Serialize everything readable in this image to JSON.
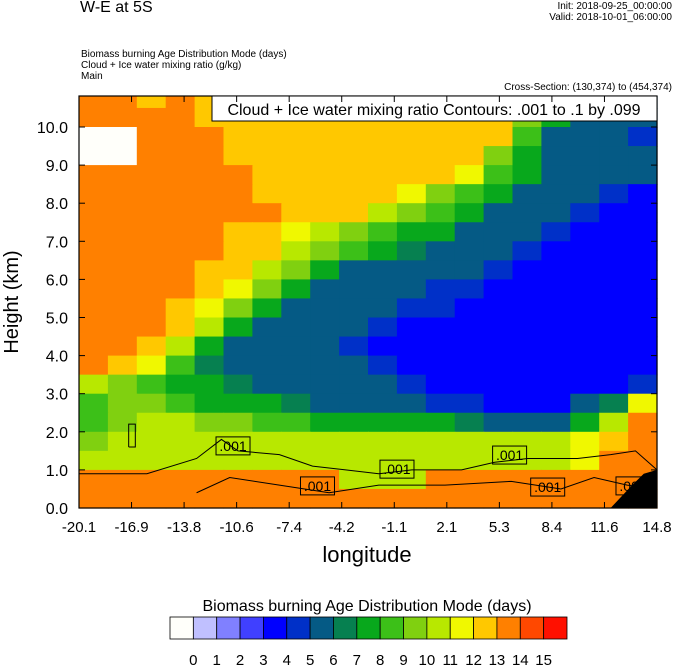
{
  "header": {
    "title": "W-E at 5S",
    "init": "Init: 2018-09-25_00:00:00",
    "valid": "Valid: 2018-10-01_06:00:00",
    "field_lines": [
      "Biomass burning Age Distribution Mode   (days)",
      "Cloud + Ice water mixing ratio   (g/kg)",
      "Main"
    ],
    "cross_section": "Cross-Section: (130,374) to (454,374)"
  },
  "chart_data": {
    "type": "heatmap",
    "title": "W-E at 5S",
    "overlay_title": "Cloud + Ice water mixing ratio Contours: .001 to .1 by .099",
    "xlabel": "longitude",
    "ylabel": "Height (km)",
    "xlim": [
      -20.1,
      14.8
    ],
    "ylim": [
      0,
      10.8
    ],
    "xticks": [
      "-20.1",
      "-16.9",
      "-13.8",
      "-10.6",
      "-7.4",
      "-4.2",
      "-1.1",
      "2.1",
      "5.3",
      "8.4",
      "11.6",
      "14.8"
    ],
    "yticks": [
      "0.0",
      "1.0",
      "2.0",
      "3.0",
      "4.0",
      "5.0",
      "6.0",
      "7.0",
      "8.0",
      "9.0",
      "10.0"
    ],
    "grid_note": "rows from top (10.5-11 km) to bottom (0-0.5 km) in 0.5 km steps; 20 columns west to east; values are color bin index",
    "grid": [
      [
        14,
        14,
        13,
        14,
        13,
        13,
        13,
        13,
        13,
        13,
        13,
        13,
        13,
        13,
        13,
        9,
        8,
        6,
        8,
        6
      ],
      [
        14,
        14,
        14,
        14,
        13,
        13,
        13,
        13,
        13,
        13,
        13,
        13,
        13,
        13,
        13,
        10,
        8,
        6,
        6,
        6
      ],
      [
        0,
        0,
        14,
        14,
        14,
        13,
        13,
        13,
        13,
        13,
        13,
        13,
        13,
        13,
        13,
        9,
        6,
        6,
        6,
        5
      ],
      [
        0,
        0,
        14,
        14,
        14,
        13,
        13,
        13,
        13,
        13,
        13,
        13,
        13,
        13,
        10,
        8,
        6,
        6,
        6,
        6
      ],
      [
        14,
        14,
        14,
        14,
        14,
        14,
        13,
        13,
        13,
        13,
        13,
        13,
        13,
        12,
        9,
        8,
        6,
        6,
        6,
        6
      ],
      [
        14,
        14,
        14,
        14,
        14,
        14,
        13,
        13,
        13,
        13,
        13,
        12,
        10,
        9,
        8,
        6,
        6,
        6,
        5,
        4
      ],
      [
        14,
        14,
        14,
        14,
        14,
        14,
        14,
        13,
        13,
        13,
        11,
        10,
        9,
        8,
        6,
        6,
        6,
        5,
        4,
        4
      ],
      [
        14,
        14,
        14,
        14,
        14,
        13,
        13,
        12,
        11,
        10,
        9,
        8,
        8,
        6,
        6,
        6,
        5,
        4,
        4,
        4
      ],
      [
        14,
        14,
        14,
        14,
        14,
        13,
        13,
        11,
        10,
        9,
        8,
        7,
        6,
        6,
        6,
        5,
        4,
        4,
        4,
        4
      ],
      [
        14,
        14,
        14,
        14,
        13,
        13,
        11,
        10,
        8,
        6,
        6,
        6,
        6,
        6,
        5,
        4,
        4,
        4,
        4,
        4
      ],
      [
        14,
        14,
        14,
        14,
        13,
        12,
        10,
        8,
        6,
        6,
        6,
        6,
        5,
        5,
        4,
        4,
        4,
        4,
        4,
        4
      ],
      [
        14,
        14,
        14,
        13,
        12,
        10,
        8,
        6,
        6,
        6,
        6,
        5,
        5,
        4,
        4,
        4,
        4,
        4,
        4,
        4
      ],
      [
        14,
        14,
        14,
        13,
        11,
        8,
        6,
        6,
        6,
        6,
        5,
        4,
        4,
        4,
        4,
        4,
        4,
        4,
        4,
        4
      ],
      [
        14,
        14,
        13,
        11,
        8,
        6,
        6,
        6,
        6,
        5,
        4,
        4,
        4,
        4,
        4,
        4,
        4,
        4,
        4,
        4
      ],
      [
        14,
        13,
        12,
        9,
        7,
        6,
        6,
        6,
        6,
        6,
        5,
        4,
        4,
        4,
        4,
        4,
        4,
        4,
        4,
        4
      ],
      [
        11,
        10,
        9,
        8,
        8,
        7,
        6,
        6,
        6,
        6,
        6,
        5,
        4,
        4,
        4,
        4,
        4,
        4,
        4,
        5
      ],
      [
        9,
        10,
        10,
        9,
        8,
        8,
        8,
        7,
        6,
        6,
        6,
        6,
        5,
        5,
        4,
        4,
        4,
        6,
        7,
        12
      ],
      [
        9,
        10,
        11,
        11,
        10,
        10,
        9,
        9,
        8,
        8,
        8,
        8,
        8,
        7,
        6,
        6,
        6,
        8,
        11,
        14
      ],
      [
        10,
        11,
        11,
        11,
        11,
        11,
        11,
        11,
        11,
        11,
        11,
        11,
        11,
        11,
        11,
        11,
        11,
        12,
        13,
        14
      ],
      [
        11,
        11,
        11,
        11,
        11,
        11,
        11,
        11,
        11,
        11,
        11,
        11,
        11,
        11,
        11,
        11,
        11,
        12,
        14,
        14
      ],
      [
        14,
        14,
        14,
        14,
        14,
        14,
        14,
        14,
        14,
        11,
        11,
        11,
        14,
        14,
        14,
        14,
        14,
        14,
        14,
        14
      ],
      [
        14,
        14,
        14,
        14,
        14,
        14,
        14,
        14,
        14,
        14,
        14,
        14,
        14,
        14,
        14,
        14,
        14,
        14,
        14,
        14
      ]
    ],
    "contours": [
      [
        [
          -20.1,
          0.9
        ],
        [
          -16,
          0.9
        ],
        [
          -13,
          1.3
        ],
        [
          -11.5,
          1.8
        ],
        [
          -10.5,
          1.5
        ],
        [
          -8,
          1.4
        ],
        [
          -6,
          1.1
        ],
        [
          -4,
          1.0
        ],
        [
          -2,
          0.9
        ],
        [
          0,
          1.0
        ],
        [
          3,
          1.0
        ],
        [
          5,
          1.2
        ],
        [
          7,
          1.3
        ],
        [
          10,
          1.3
        ],
        [
          12,
          1.4
        ],
        [
          13.5,
          1.5
        ],
        [
          14.8,
          1.0
        ]
      ],
      [
        [
          -13,
          0.4
        ],
        [
          -11,
          0.8
        ],
        [
          -8,
          0.6
        ],
        [
          -5,
          0.4
        ],
        [
          -2,
          0.6
        ],
        [
          2,
          0.6
        ],
        [
          6,
          0.7
        ],
        [
          9,
          0.5
        ],
        [
          11,
          0.8
        ],
        [
          13,
          0.6
        ],
        [
          14.8,
          0.5
        ]
      ],
      [
        [
          -17.1,
          1.6
        ],
        [
          -16.7,
          1.6
        ],
        [
          -16.7,
          2.2
        ],
        [
          -17.1,
          2.2
        ],
        [
          -17.1,
          1.6
        ]
      ]
    ],
    "contour_labels": [
      {
        "text": ".001",
        "lon": -10.8,
        "km": 1.63
      },
      {
        "text": ".001",
        "lon": -5.7,
        "km": 0.58
      },
      {
        "text": ".001",
        "lon": -0.9,
        "km": 1.02
      },
      {
        "text": ".001",
        "lon": 5.9,
        "km": 1.39
      },
      {
        "text": ".001",
        "lon": 8.2,
        "km": 0.55
      },
      {
        "text": ".001",
        "lon": 13.35,
        "km": 0.58
      }
    ],
    "terrain": [
      [
        12.0,
        0
      ],
      [
        13.3,
        0.6
      ],
      [
        14.0,
        0.9
      ],
      [
        14.8,
        1.0
      ],
      [
        14.8,
        0
      ]
    ],
    "colorbar": {
      "title": "Biomass burning Age Distribution Mode  (days)",
      "colors": [
        "#fffffa",
        "#c0c0ff",
        "#8080ff",
        "#4040ff",
        "#0000ff",
        "#0030c8",
        "#055a85",
        "#068050",
        "#08a81c",
        "#3cc018",
        "#80d010",
        "#b8e800",
        "#f0f800",
        "#ffc800",
        "#ff8000",
        "#ff4800",
        "#ff1000"
      ],
      "labels": [
        "0",
        "1",
        "2",
        "3",
        "4",
        "5",
        "6",
        "7",
        "8",
        "9",
        "10",
        "11",
        "12",
        "13",
        "14",
        "15"
      ]
    }
  }
}
